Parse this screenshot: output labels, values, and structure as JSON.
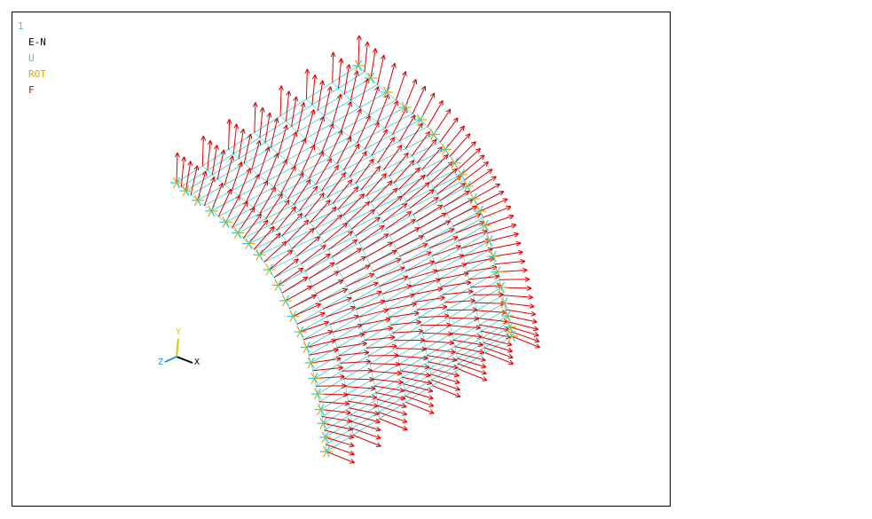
{
  "window_number": "1",
  "plot_label": "E-N",
  "legend": [
    {
      "label": "U",
      "color": "#33cccc"
    },
    {
      "label": "ROT",
      "color": "#e6a800"
    },
    {
      "label": "F",
      "color": "#e00000"
    }
  ],
  "colors": {
    "mesh": "#33cccc",
    "constraint": "#e6a800",
    "force": "#e00000",
    "axis_x": "#000000",
    "axis_y": "#cccc00",
    "axis_z": "#1e90ff"
  },
  "triad": {
    "x": "X",
    "y": "Y",
    "z": "Z"
  },
  "icons": [
    "coordinate-triad-icon",
    "displacement-constraint-icon",
    "force-arrow-icon"
  ]
}
